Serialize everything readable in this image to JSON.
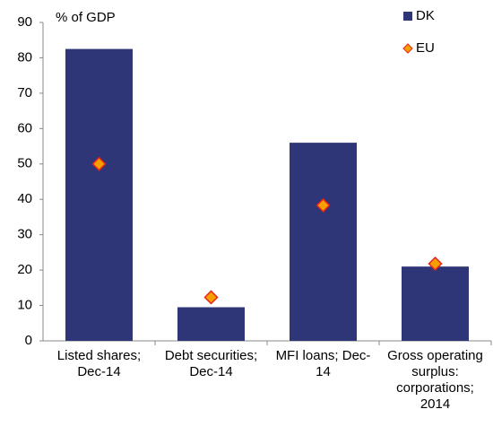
{
  "chart_data": {
    "type": "bar",
    "y_axis_label": "% of GDP",
    "categories": [
      "Listed shares; Dec-14",
      "Debt securities; Dec-14",
      "MFI loans; Dec-14",
      "Gross operating surplus: corporations; 2014"
    ],
    "series": [
      {
        "name": "DK",
        "color": "#2e3677",
        "marker": "bar",
        "values": [
          82.5,
          9.5,
          56,
          21
        ]
      },
      {
        "name": "EU",
        "color": "#f5a000",
        "edge_color": "#e8221c",
        "marker": "diamond",
        "values": [
          50,
          12.3,
          38.3,
          21.8
        ]
      }
    ],
    "ylim": [
      0,
      90
    ],
    "yticks": [
      0,
      10,
      20,
      30,
      40,
      50,
      60,
      70,
      80,
      90
    ],
    "legend": "top-right"
  }
}
